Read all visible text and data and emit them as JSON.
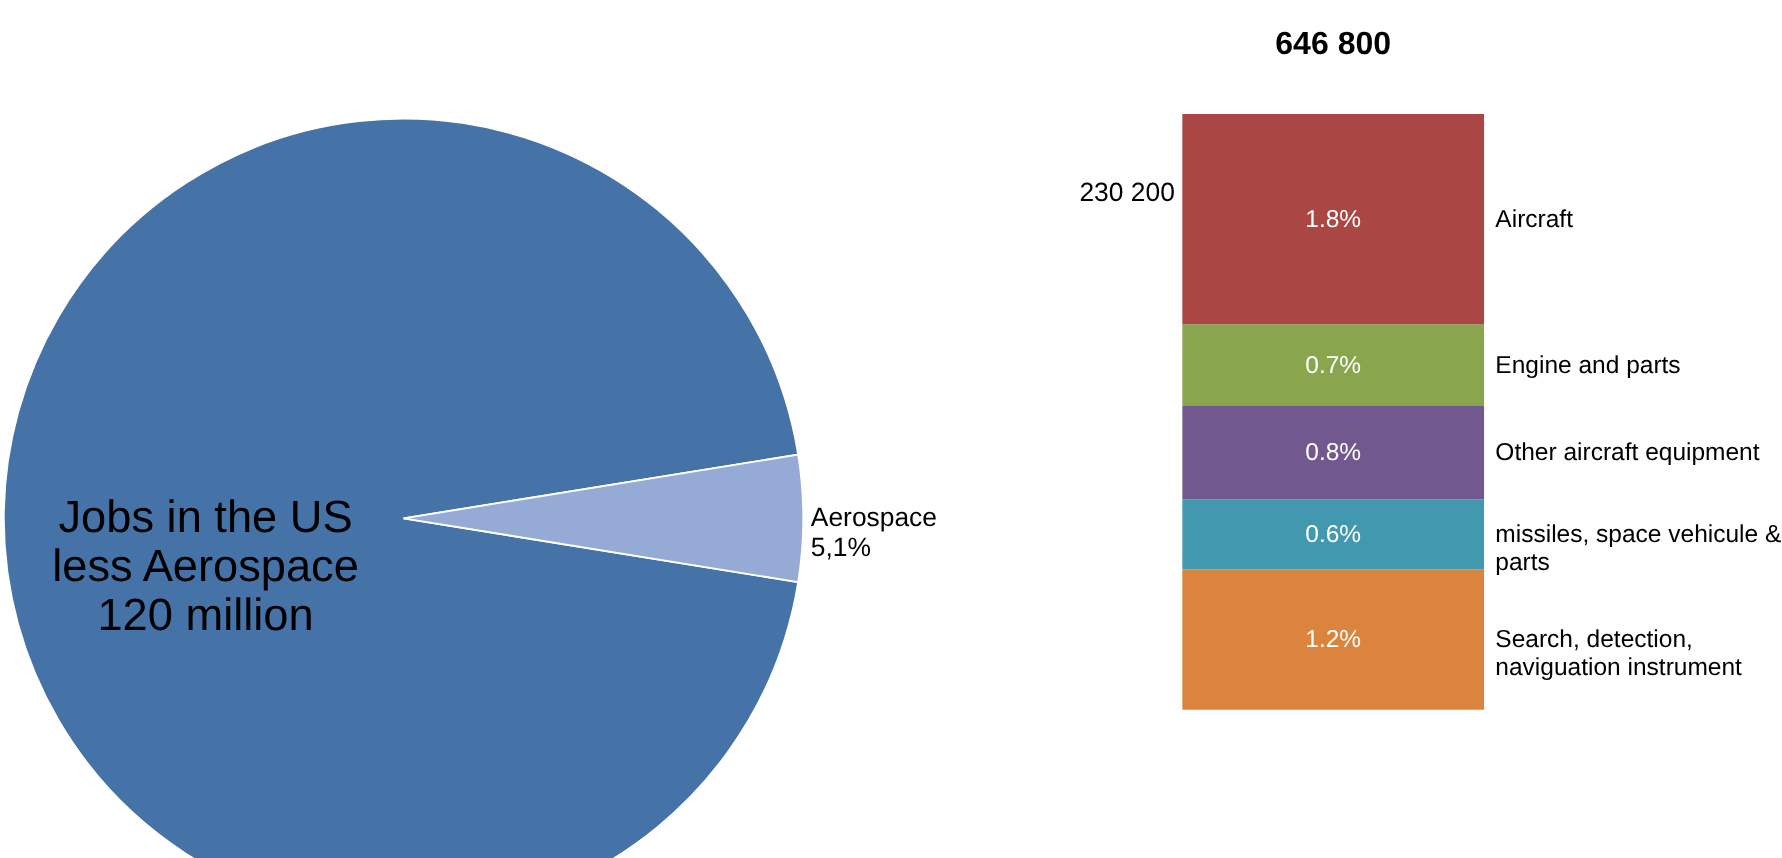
{
  "chart_data": [
    {
      "type": "pie",
      "categories": [
        "Jobs in the US\nless Aerospace\n120 million",
        "Aerospace"
      ],
      "values": [
        94.9,
        5.1
      ],
      "colors": [
        "#4572a7",
        "#95abd5"
      ],
      "value_labels": [
        null,
        "5,1%"
      ]
    },
    {
      "type": "bar",
      "title": "646 800",
      "annotations": [
        "230 200"
      ],
      "stacked": true,
      "tick_labels": false,
      "categories": [
        null
      ],
      "series": [
        {
          "name": "Search, detection, naviguation instrument",
          "color": "#db843d",
          "values": [
            1.2
          ],
          "value_labels": [
            "1.2%"
          ]
        },
        {
          "name": "missiles, space vehicule & parts",
          "color": "#4198af",
          "values": [
            0.6
          ],
          "value_labels": [
            "0.6%"
          ]
        },
        {
          "name": "Other aircraft equipment",
          "color": "#71588f",
          "values": [
            0.8
          ],
          "value_labels": [
            "0.8%"
          ]
        },
        {
          "name": "Engine and parts",
          "color": "#89a54e",
          "values": [
            0.7
          ],
          "value_labels": [
            "0.7%"
          ]
        },
        {
          "name": "Aircraft",
          "color": "#aa4643",
          "values": [
            1.8
          ],
          "value_labels": [
            "1.8%"
          ]
        }
      ]
    }
  ]
}
